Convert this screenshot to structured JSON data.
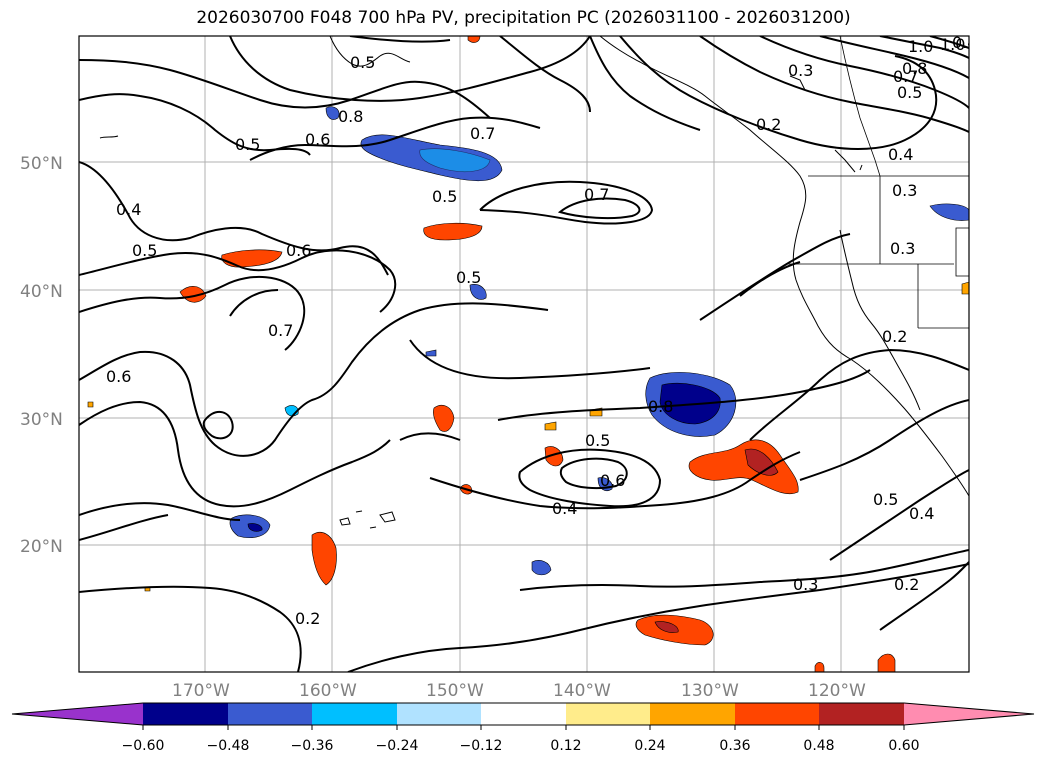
{
  "title": "2026030700 F048 700 hPa PV, precipitation PC (2026031100 - 2026031200)",
  "map": {
    "lat_labels": [
      "50°N",
      "40°N",
      "30°N",
      "20°N"
    ],
    "lon_labels": [
      "170°W",
      "160°W",
      "150°W",
      "140°W",
      "130°W",
      "120°W"
    ],
    "contour_labels": [
      "1.0",
      "1.0",
      "0.8",
      "0.7",
      "0.7",
      "0.6",
      "0.5",
      "0.5",
      "0.5",
      "0.5",
      "0.5",
      "0.5",
      "0.4",
      "0.4",
      "0.4",
      "0.4",
      "0.3",
      "0.3",
      "0.3",
      "0.3",
      "0.2",
      "0.2",
      "0.2",
      "0.2",
      "0.6",
      "0.6",
      "0.6",
      "0.7",
      "0.5",
      "0.8",
      "0.8",
      "0.7",
      "0.4",
      "0.5"
    ]
  },
  "colorbar": {
    "ticks": [
      "−0.60",
      "−0.48",
      "−0.36",
      "−0.24",
      "−0.12",
      "0.12",
      "0.24",
      "0.36",
      "0.48",
      "0.60"
    ],
    "colors": [
      "#9932cc",
      "#00008b",
      "#3a5bd0",
      "#00bfff",
      "#b0e2ff",
      "#ffffff",
      "#ffec8b",
      "#ffa500",
      "#ff4500",
      "#b22222",
      "#ff8cb0"
    ]
  }
}
